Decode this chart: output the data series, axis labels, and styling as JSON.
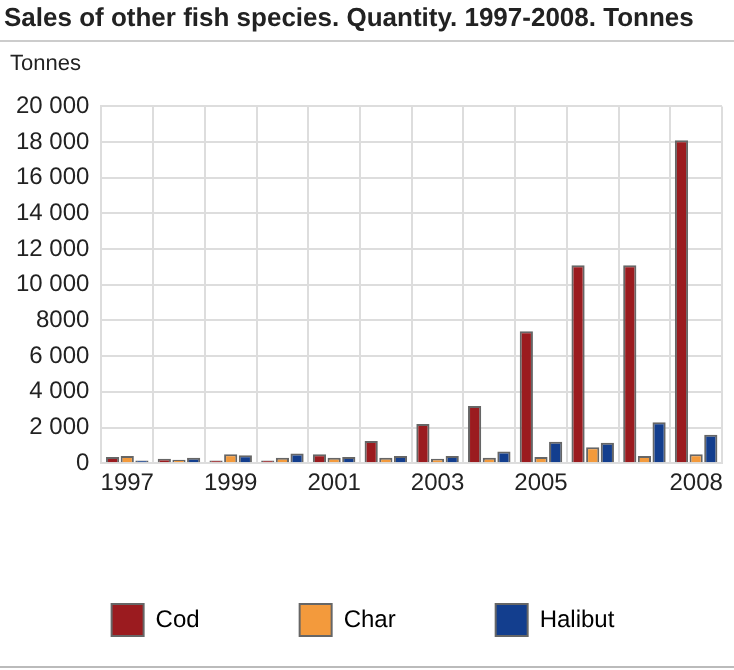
{
  "chart_data": {
    "type": "bar",
    "title": "Sales of other fish species. Quantity. 1997-2008. Tonnes",
    "ylabel": "Tonnes",
    "categories": [
      "1997",
      null,
      "1999",
      null,
      "2001",
      null,
      "2003",
      null,
      "2005",
      null,
      null,
      "2008"
    ],
    "series": [
      {
        "name": "Cod",
        "color": "#9b1b1f",
        "values": [
          350,
          250,
          150,
          150,
          500,
          1250,
          2200,
          3200,
          7400,
          11100,
          11100,
          18100
        ]
      },
      {
        "name": "Char",
        "color": "#f39a3c",
        "values": [
          400,
          200,
          500,
          300,
          300,
          300,
          250,
          300,
          350,
          900,
          400,
          500
        ]
      },
      {
        "name": "Halibut",
        "color": "#133e8e",
        "values": [
          150,
          300,
          450,
          550,
          350,
          400,
          400,
          650,
          1200,
          1150,
          2300,
          1600
        ]
      }
    ],
    "ylim": [
      0,
      20000
    ],
    "yticks": [
      0,
      {
        "value": 2000,
        "label": "2 000"
      },
      {
        "value": 4000,
        "label": "4 000"
      },
      {
        "value": 6000,
        "label": "6 000"
      },
      8000,
      {
        "value": 10000,
        "label": "10 000"
      },
      {
        "value": 12000,
        "label": "12 000"
      },
      {
        "value": 14000,
        "label": "14 000"
      },
      {
        "value": 16000,
        "label": "16 000"
      },
      {
        "value": 18000,
        "label": "18 000"
      },
      {
        "value": 20000,
        "label": "20 000"
      }
    ],
    "grid": true,
    "legend": "bottom"
  }
}
